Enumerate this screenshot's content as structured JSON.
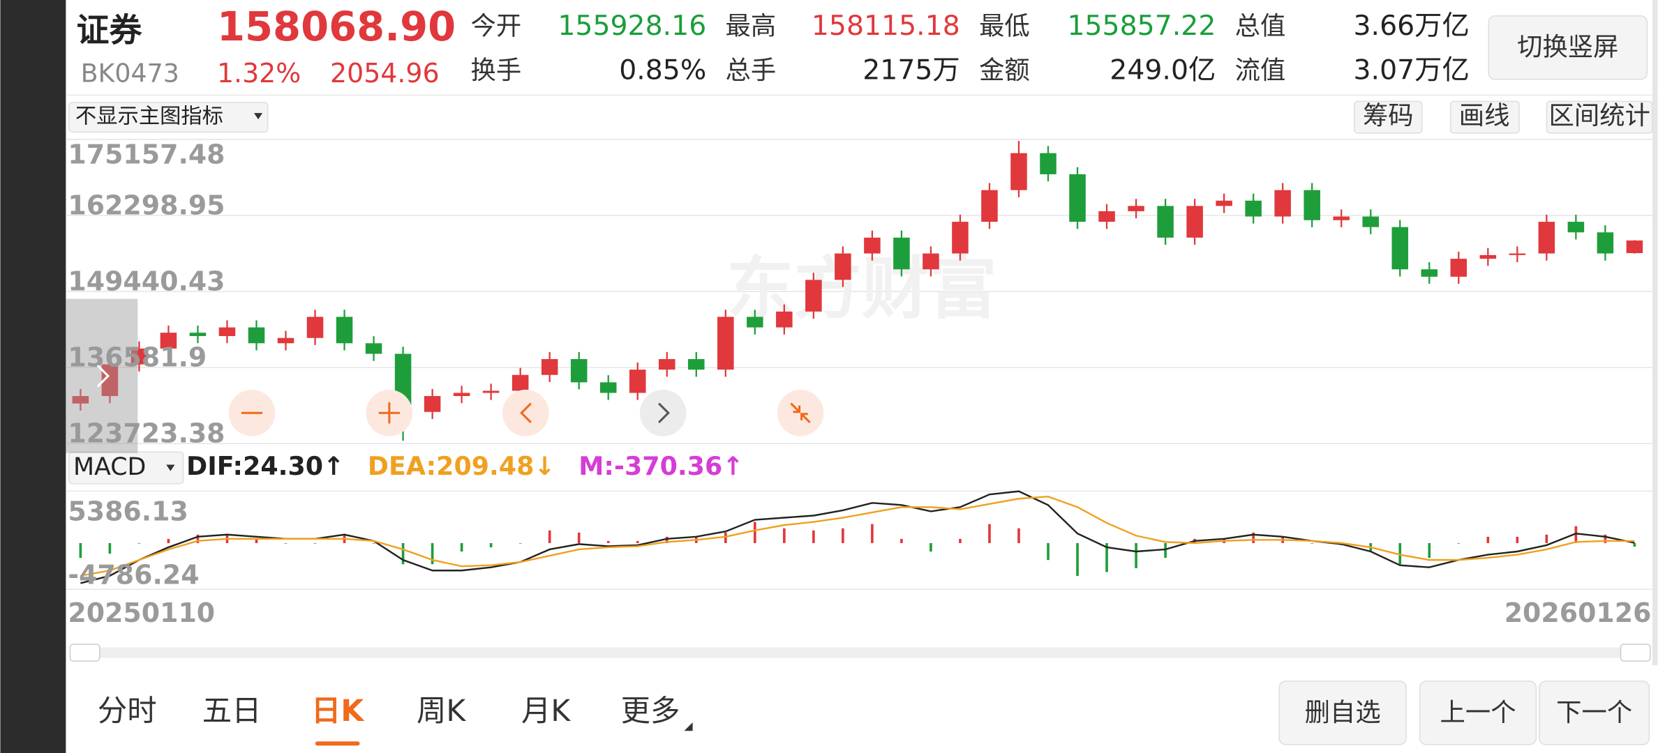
{
  "header": {
    "name": "证券",
    "price": "158068.90",
    "code": "BK0473",
    "change_pct": "1.32%",
    "change": "2054.96",
    "price_color": "#e0383c",
    "stats": [
      {
        "label": "今开",
        "value": "155928.16",
        "color": "#1a9e3a"
      },
      {
        "label": "最高",
        "value": "158115.18",
        "color": "#e0383c"
      },
      {
        "label": "最低",
        "value": "155857.22",
        "color": "#1a9e3a"
      },
      {
        "label": "总值",
        "value": "3.66万亿",
        "color": "#222222"
      },
      {
        "label": "换手",
        "value": "0.85%",
        "color": "#222222"
      },
      {
        "label": "总手",
        "value": "2175万",
        "color": "#222222"
      },
      {
        "label": "金额",
        "value": "249.0亿",
        "color": "#222222"
      },
      {
        "label": "流值",
        "value": "3.07万亿",
        "color": "#222222"
      }
    ],
    "switch_button": "切换竖屏"
  },
  "toolbar": {
    "indicator": "不显示主图指标",
    "buttons": [
      "筹码",
      "画线",
      "区间统计"
    ]
  },
  "chart_data": [
    {
      "type": "candlestick",
      "watermark": "东方财富",
      "up_color": "#e0383c",
      "down_color": "#1e9e3a",
      "grid": true,
      "ylim": [
        123723.38,
        175157.48
      ],
      "yticks": [
        175157.48,
        162298.95,
        149440.43,
        136581.9,
        123723.38
      ],
      "open": [
        130500,
        131757,
        137115,
        139794,
        142473,
        141900,
        143366,
        140687,
        141580,
        145152,
        140687,
        138901,
        129078,
        131757,
        132293,
        132650,
        135329,
        138008,
        134079,
        132293,
        136222,
        138008,
        136222,
        145152,
        143366,
        146045,
        151403,
        155868,
        158547,
        153189,
        155868,
        161226,
        166584,
        172835,
        169263,
        161226,
        163012,
        163905,
        158547,
        163905,
        164800,
        162119,
        166584,
        161500,
        162119,
        160333,
        153189,
        151939,
        154975,
        155600,
        155868,
        161226,
        159440,
        155928.16
      ],
      "high": [
        132957,
        138315,
        140994,
        143673,
        143673,
        144566,
        144566,
        142780,
        146352,
        146352,
        141887,
        140101,
        132957,
        133493,
        133850,
        136529,
        139208,
        139208,
        135279,
        137422,
        139208,
        139208,
        146352,
        146352,
        147245,
        152603,
        157068,
        159747,
        159747,
        157068,
        162426,
        167784,
        174900,
        174035,
        170463,
        164212,
        165105,
        165105,
        165105,
        166000,
        166000,
        167784,
        167784,
        163319,
        163319,
        161533,
        154389,
        156175,
        156800,
        157068,
        162426,
        162426,
        160640,
        158115.18
      ],
      "low": [
        129300,
        130557,
        135915,
        138594,
        140700,
        140700,
        139487,
        139487,
        140380,
        139487,
        137701,
        124200,
        127878,
        130557,
        131093,
        131450,
        134129,
        132879,
        131093,
        131093,
        135022,
        135022,
        135022,
        142166,
        142166,
        144845,
        150203,
        154668,
        151989,
        151989,
        154668,
        160026,
        165384,
        168063,
        160026,
        160026,
        161812,
        157347,
        157347,
        162705,
        160919,
        160919,
        160300,
        160300,
        159133,
        151989,
        150739,
        150739,
        153775,
        154400,
        154668,
        158240,
        154668,
        155857.22
      ],
      "close": [
        131757,
        137115,
        139794,
        142473,
        141900,
        143366,
        140687,
        141580,
        145152,
        140687,
        138901,
        129078,
        131757,
        132293,
        132650,
        135329,
        138008,
        134079,
        132293,
        136222,
        138008,
        136222,
        145152,
        143366,
        146045,
        151403,
        155868,
        158547,
        153189,
        155868,
        161226,
        166584,
        172835,
        169263,
        161226,
        163012,
        163905,
        158547,
        163905,
        164800,
        162119,
        166584,
        161500,
        162119,
        160333,
        153189,
        151939,
        154975,
        155600,
        155868,
        161226,
        159440,
        155868,
        158068.9
      ]
    },
    {
      "type": "macd",
      "indicator": "MACD",
      "up_color": "#e0383c",
      "down_color": "#1e9e3a",
      "ylim": [
        -4786.24,
        5386.13
      ],
      "yticks": [
        5386.13,
        -4786.24
      ],
      "x": [
        "20250110",
        null,
        null,
        null,
        null,
        null,
        null,
        null,
        null,
        null,
        null,
        null,
        null,
        null,
        null,
        null,
        null,
        null,
        null,
        null,
        null,
        null,
        null,
        null,
        null,
        null,
        null,
        null,
        null,
        null,
        null,
        null,
        null,
        null,
        null,
        null,
        null,
        null,
        null,
        null,
        null,
        null,
        null,
        null,
        null,
        null,
        null,
        null,
        null,
        null,
        null,
        null,
        null,
        "20260126"
      ],
      "series": [
        {
          "name": "DIF:24.30↑",
          "color": "#222222",
          "type": "line",
          "values": [
            -4157,
            -3391,
            -1750,
            -438,
            656,
            875,
            656,
            438,
            438,
            875,
            219,
            -1750,
            -2844,
            -2844,
            -2516,
            -1969,
            -656,
            -109,
            -328,
            -219,
            438,
            656,
            1203,
            2407,
            2626,
            2844,
            3391,
            4157,
            3938,
            3282,
            3720,
            5032,
            5361,
            3938,
            985,
            -438,
            -875,
            -656,
            219,
            438,
            875,
            656,
            219,
            -109,
            -875,
            -2297,
            -2516,
            -1750,
            -1203,
            -875,
            -219,
            985,
            656,
            24.3
          ]
        },
        {
          "name": "DEA:209.48↓",
          "color": "#f0a020",
          "type": "line",
          "values": [
            -3391,
            -2844,
            -1750,
            -656,
            219,
            438,
            438,
            438,
            438,
            438,
            219,
            -656,
            -1750,
            -2407,
            -2297,
            -1969,
            -1313,
            -656,
            -438,
            -328,
            109,
            328,
            656,
            1313,
            1860,
            2188,
            2626,
            3173,
            3720,
            3720,
            3501,
            4048,
            4595,
            4814,
            3720,
            2079,
            766,
            109,
            0,
            219,
            328,
            328,
            219,
            0,
            -438,
            -1203,
            -1750,
            -1750,
            -1532,
            -1203,
            -656,
            109,
            219,
            209.48
          ]
        },
        {
          "name": "M:-370.36↑",
          "color": "#d63cd6",
          "type": "bar",
          "values": [
            -1532,
            -1094,
            0,
            436,
            874,
            874,
            436,
            0,
            0,
            874,
            0,
            -2188,
            -2188,
            -874,
            -438,
            0,
            1314,
            1094,
            220,
            218,
            658,
            656,
            1094,
            2188,
            1532,
            1312,
            1530,
            1968,
            436,
            -876,
            438,
            1968,
            1532,
            -1752,
            -3400,
            -3000,
            -2600,
            -1530,
            438,
            438,
            1094,
            656,
            0,
            -218,
            -874,
            -2188,
            -1532,
            0,
            658,
            656,
            874,
            1752,
            874,
            -370.36
          ]
        }
      ]
    }
  ],
  "tabs": {
    "items": [
      "分时",
      "五日",
      "日K",
      "周K",
      "月K",
      "更多"
    ],
    "active": 2,
    "active_color": "#f06a1a"
  },
  "actions": [
    "删自选",
    "上一个",
    "下一个"
  ]
}
